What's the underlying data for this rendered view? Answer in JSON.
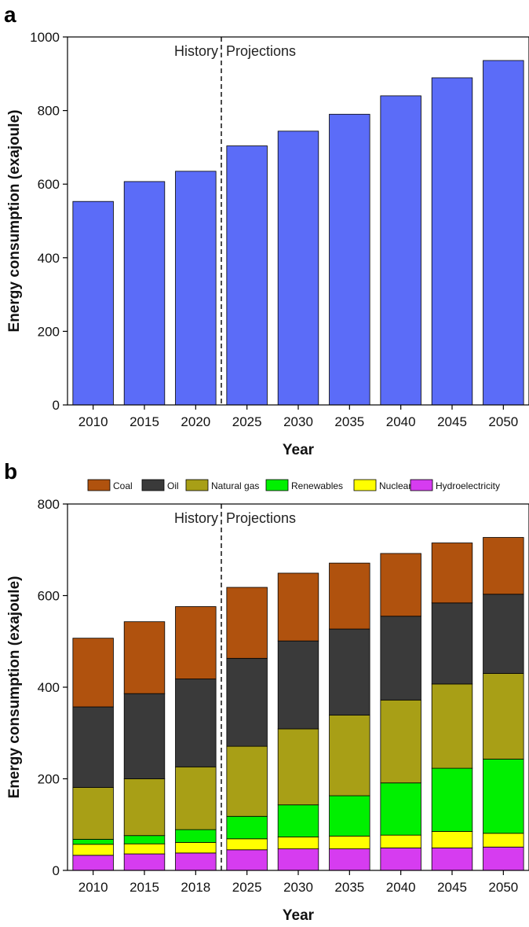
{
  "chart_data": [
    {
      "panel": "a",
      "type": "bar",
      "categories": [
        "2010",
        "2015",
        "2020",
        "2025",
        "2030",
        "2035",
        "2040",
        "2045",
        "2050"
      ],
      "values": [
        553,
        607,
        635,
        704,
        744,
        790,
        840,
        889,
        936
      ],
      "xlabel": "Year",
      "ylabel": "Energy consumption (exajoule)",
      "ylim": [
        0,
        1000
      ],
      "yticks": [
        0,
        200,
        400,
        600,
        800,
        1000
      ],
      "bar_color": "#5b6cf8",
      "divider_after_index": 2,
      "annotations": {
        "left": "History",
        "right": "Projections"
      }
    },
    {
      "panel": "b",
      "type": "bar",
      "stacked": true,
      "categories": [
        "2010",
        "2015",
        "2018",
        "2025",
        "2030",
        "2035",
        "2040",
        "2045",
        "2050"
      ],
      "series": [
        {
          "name": "Hydroelectricity",
          "color": "#d63cf0",
          "values": [
            33,
            36,
            38,
            45,
            47,
            47,
            49,
            49,
            51
          ]
        },
        {
          "name": "Nuclear",
          "color": "#ffff00",
          "values": [
            24,
            22,
            23,
            24,
            26,
            28,
            28,
            36,
            30
          ]
        },
        {
          "name": "Renewables",
          "color": "#00f000",
          "values": [
            11,
            18,
            28,
            49,
            70,
            88,
            114,
            138,
            162
          ]
        },
        {
          "name": "Natural gas",
          "color": "#a89f16",
          "values": [
            113,
            124,
            137,
            153,
            166,
            176,
            181,
            184,
            187
          ]
        },
        {
          "name": "Oil",
          "color": "#3a3a3a",
          "values": [
            176,
            186,
            192,
            192,
            192,
            188,
            183,
            177,
            173
          ]
        },
        {
          "name": "Coal",
          "color": "#b0520e",
          "values": [
            150,
            157,
            158,
            155,
            148,
            144,
            137,
            131,
            124
          ]
        }
      ],
      "legend_order": [
        "Coal",
        "Oil",
        "Natural gas",
        "Renewables",
        "Nuclear",
        "Hydroelectricity"
      ],
      "legend_position": "top",
      "xlabel": "Year",
      "ylabel": "Energy consumption (exajoule)",
      "ylim": [
        0,
        800
      ],
      "yticks": [
        0,
        200,
        400,
        600,
        800
      ],
      "divider_after_index": 2,
      "annotations": {
        "left": "History",
        "right": "Projections"
      }
    }
  ]
}
